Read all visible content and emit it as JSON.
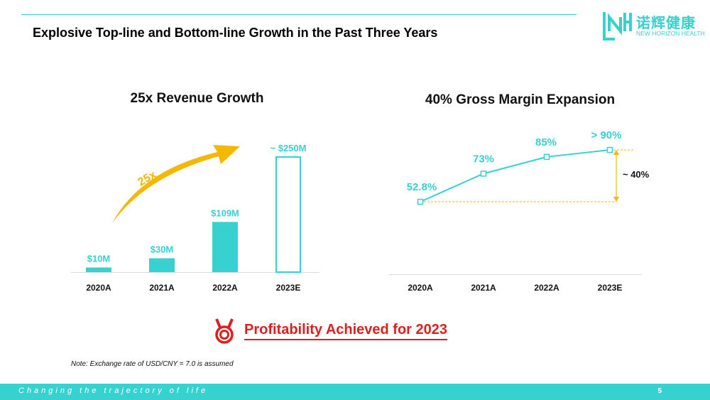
{
  "header": {
    "title": "Explosive Top-line and Bottom-line Growth in the Past Three Years",
    "logo_cn": "诺辉健康",
    "logo_en": "NEW HORIZON HEALTH",
    "brand_color": "#37d2cf"
  },
  "chart_data": [
    {
      "type": "bar",
      "title": "25x Revenue Growth",
      "categories": [
        "2020A",
        "2021A",
        "2022A",
        "2023E"
      ],
      "values": [
        10,
        30,
        109,
        250
      ],
      "data_labels": [
        "$10M",
        "$30M",
        "$109M",
        "~ $250M"
      ],
      "estimated": [
        false,
        false,
        false,
        true
      ],
      "annotation": "25x",
      "ylim": [
        0,
        260
      ],
      "grid": false,
      "bar_color": "#37d2cf",
      "arrow_color": "#f5b800"
    },
    {
      "type": "line",
      "title": "40% Gross Margin Expansion",
      "categories": [
        "2020A",
        "2021A",
        "2022A",
        "2023E"
      ],
      "values": [
        52.8,
        73,
        85,
        90
      ],
      "data_labels": [
        "52.8%",
        "73%",
        "85%",
        "> 90%"
      ],
      "annotation": "~ 40%",
      "ylim": [
        40,
        100
      ],
      "grid": false,
      "line_color": "#37d2cf",
      "guide_color": "#f5b800"
    }
  ],
  "highlight": {
    "text": "Profitability Achieved for 2023",
    "color": "#e01e1e"
  },
  "note": "Note: Exchange rate of USD/CNY = 7.0 is assumed",
  "footer": {
    "tagline": "Changing the trajectory of life",
    "page": "5"
  }
}
